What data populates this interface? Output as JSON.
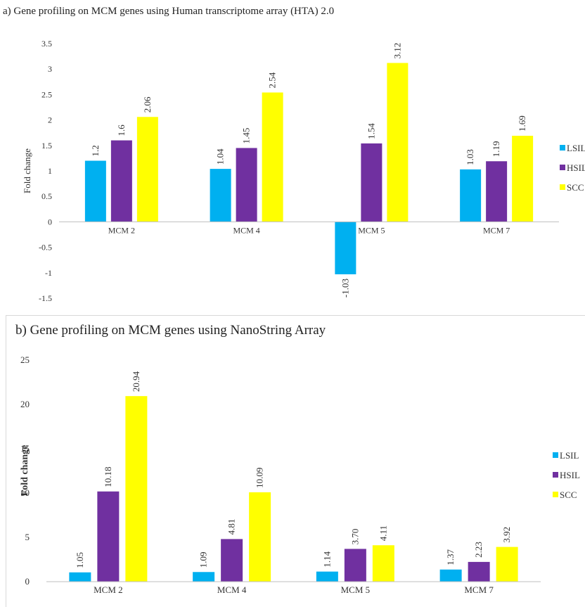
{
  "colors": {
    "LSIL": "#00B0F0",
    "HSIL": "#7030A0",
    "SCC": "#FFFF00",
    "gridline": "#d9d9d9",
    "axis": "#bfbfbf"
  },
  "panels": {
    "a": {
      "title": "a) Gene profiling  on MCM genes using Human transcriptome array (HTA) 2.0"
    },
    "b": {
      "title": "b) Gene profiling on MCM genes using NanoString Array"
    }
  },
  "chart_data": [
    {
      "type": "bar",
      "title": "a) Gene profiling  on MCM genes using Human transcriptome array (HTA) 2.0",
      "ylabel": "Fold change",
      "xlabel": "",
      "categories": [
        "MCM 2",
        "MCM 4",
        "MCM 5",
        "MCM 7"
      ],
      "series": [
        {
          "name": "LSIL",
          "values": [
            1.2,
            1.04,
            -1.03,
            1.03
          ],
          "labels": [
            "1.2",
            "1.04",
            "-1.03",
            "1.03"
          ]
        },
        {
          "name": "HSIL",
          "values": [
            1.6,
            1.45,
            1.54,
            1.19
          ],
          "labels": [
            "1.6",
            "1.45",
            "1.54",
            "1.19"
          ]
        },
        {
          "name": "SCC",
          "values": [
            2.06,
            2.54,
            3.12,
            1.69
          ],
          "labels": [
            "2.06",
            "2.54",
            "3.12",
            "1.69"
          ]
        }
      ],
      "ylim": [
        -1.5,
        3.5
      ],
      "yticks": [
        "-1.5",
        "-1",
        "-0.5",
        "0",
        "0.5",
        "1",
        "1.5",
        "2",
        "2.5",
        "3",
        "3.5"
      ],
      "grid": false,
      "legend": "right"
    },
    {
      "type": "bar",
      "title": "b) Gene profiling on MCM genes using NanoString Array",
      "ylabel": "Fold change",
      "xlabel": "",
      "categories": [
        "MCM 2",
        "MCM 4",
        "MCM 5",
        "MCM 7"
      ],
      "series": [
        {
          "name": "LSIL",
          "values": [
            1.05,
            1.09,
            1.14,
            1.37
          ],
          "labels": [
            "1.05",
            "1.09",
            "1.14",
            "1.37"
          ]
        },
        {
          "name": "HSIL",
          "values": [
            10.18,
            4.81,
            3.7,
            2.23
          ],
          "labels": [
            "10.18",
            "4.81",
            "3.70",
            "2.23"
          ]
        },
        {
          "name": "SCC",
          "values": [
            20.94,
            10.09,
            4.11,
            3.92
          ],
          "labels": [
            "20.94",
            "10.09",
            "4.11",
            "3.92"
          ]
        }
      ],
      "ylim": [
        0,
        25
      ],
      "yticks": [
        "0",
        "5",
        "10",
        "15",
        "20",
        "25"
      ],
      "grid": false,
      "legend": "right"
    }
  ]
}
